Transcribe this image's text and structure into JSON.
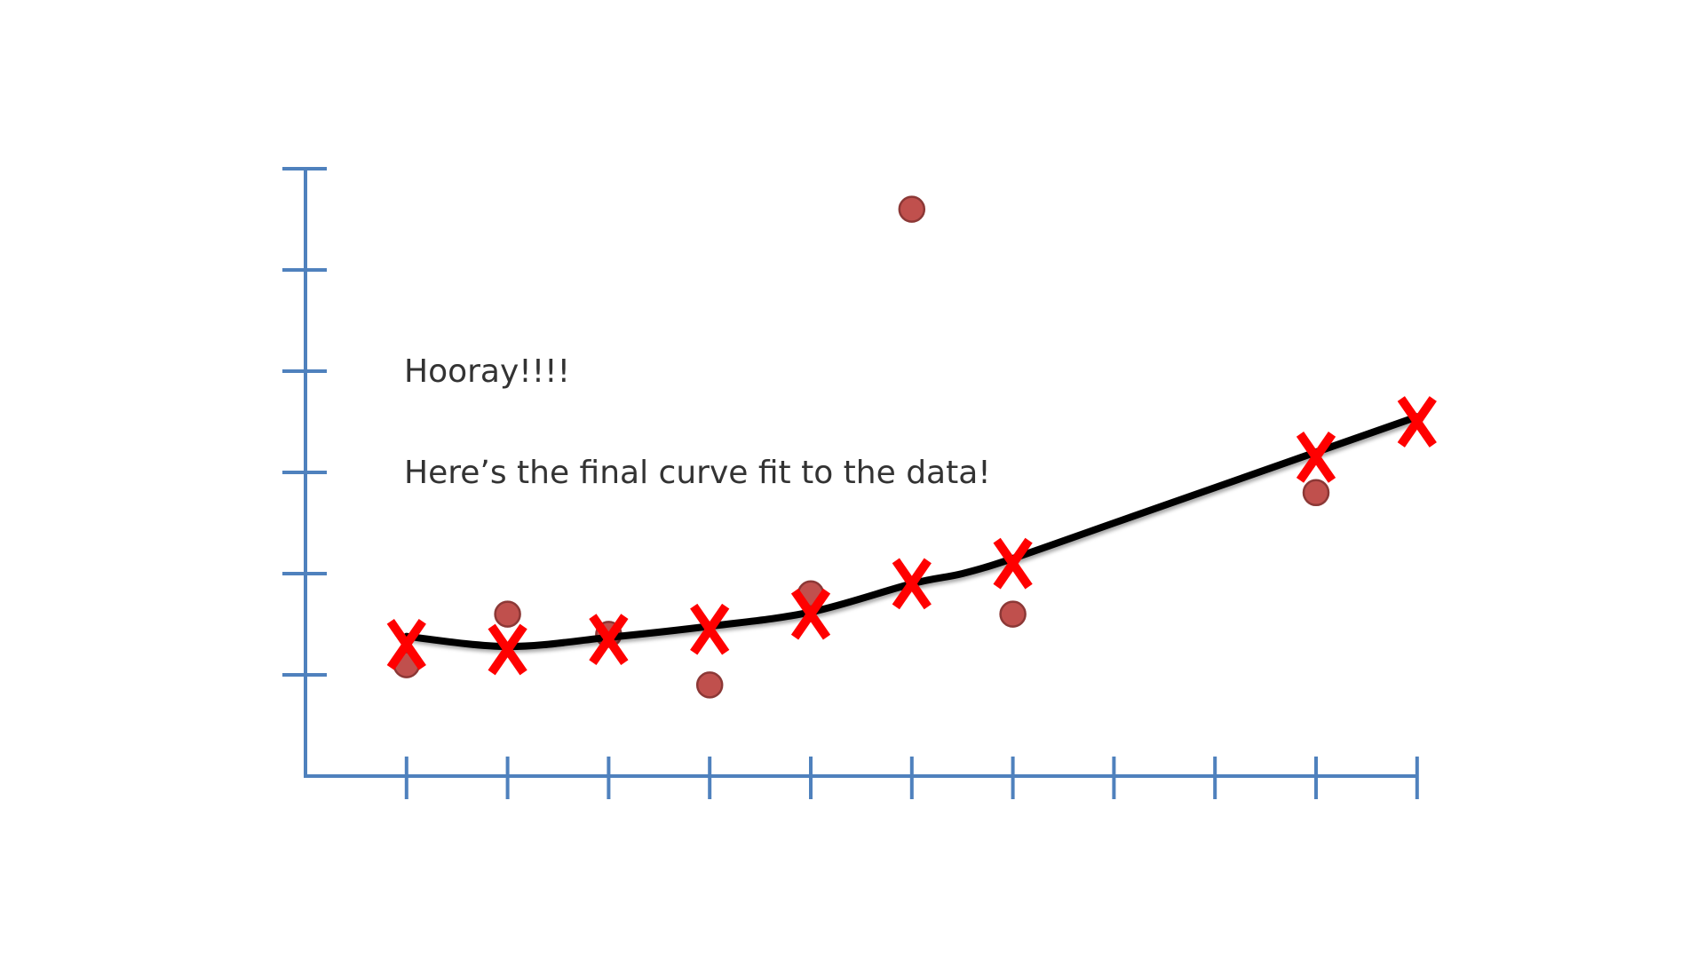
{
  "slide": {
    "heading": "Hooray!!!!",
    "caption": "Here’s the final curve fit to the data!"
  },
  "chart_data": {
    "type": "scatter",
    "x_ticks": [
      1,
      2,
      3,
      4,
      5,
      6,
      7,
      8,
      9,
      10,
      11
    ],
    "y_ticks": [
      1,
      2,
      3,
      4,
      5,
      6
    ],
    "xlim": [
      0,
      11
    ],
    "ylim": [
      0,
      6
    ],
    "grid": false,
    "series": [
      {
        "kind": "observed",
        "marker": "circle",
        "color": "#c0504d",
        "points": [
          [
            1,
            1.1
          ],
          [
            2,
            1.6
          ],
          [
            3,
            1.4
          ],
          [
            4,
            0.9
          ],
          [
            5,
            1.8
          ],
          [
            6,
            5.6
          ],
          [
            7,
            1.6
          ],
          [
            10,
            2.8
          ]
        ]
      },
      {
        "kind": "fitted",
        "marker": "X",
        "color": "#ff0000",
        "points": [
          [
            1,
            1.3
          ],
          [
            2,
            1.25
          ],
          [
            3,
            1.35
          ],
          [
            4,
            1.45
          ],
          [
            5,
            1.6
          ],
          [
            6,
            1.9
          ],
          [
            7,
            2.1
          ],
          [
            10,
            3.15
          ],
          [
            11,
            3.5
          ]
        ]
      },
      {
        "kind": "curve",
        "marker": "line",
        "color": "#000000",
        "points": [
          [
            1,
            1.38
          ],
          [
            2,
            1.28
          ],
          [
            3,
            1.37
          ],
          [
            4,
            1.48
          ],
          [
            5,
            1.62
          ],
          [
            6,
            1.9
          ],
          [
            6.5,
            2.0
          ],
          [
            7,
            2.15
          ],
          [
            8,
            2.5
          ],
          [
            9,
            2.85
          ],
          [
            10,
            3.2
          ],
          [
            11,
            3.55
          ]
        ]
      }
    ]
  }
}
